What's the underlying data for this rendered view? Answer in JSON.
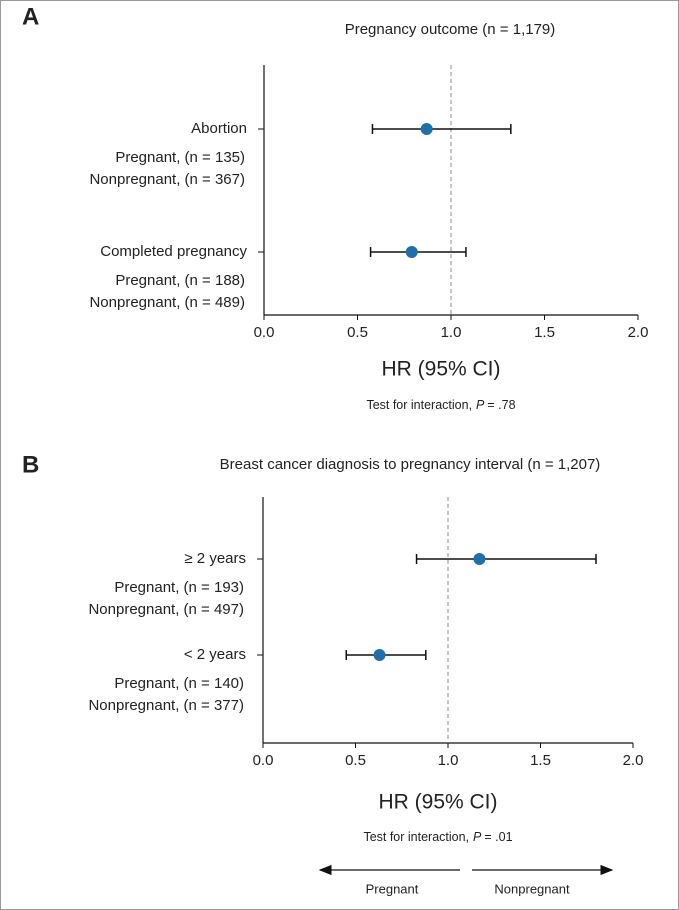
{
  "chart_data": [
    {
      "type": "forest",
      "panel": "A",
      "title": "Pregnancy outcome  (n = 1,179)",
      "categories": [
        "Abortion",
        "Completed pregnancy"
      ],
      "category_notes": [
        [
          "Pregnant, (n = 135)",
          "Nonpregnant, (n = 367)"
        ],
        [
          "Pregnant, (n = 188)",
          "Nonpregnant, (n = 489)"
        ]
      ],
      "values": [
        0.87,
        0.79
      ],
      "lower": [
        0.58,
        0.57
      ],
      "upper": [
        1.32,
        1.08
      ],
      "color": "#1f6fa8",
      "reference": 1,
      "xlim": [
        0,
        2
      ],
      "xticks": [
        {
          "value": 0,
          "label": "0.0"
        },
        0.5,
        {
          "value": 1,
          "label": "1.0"
        },
        1.5,
        {
          "value": 2,
          "label": "2.0"
        }
      ],
      "xlabel": "HR (95% CI)",
      "note": {
        "text": "Test for interaction,",
        "p": "P",
        "value": "= .78"
      }
    },
    {
      "type": "forest",
      "panel": "B",
      "title": "Breast cancer diagnosis to pregnancy interval (n = 1,207)",
      "categories": [
        "≥ 2 years",
        "< 2 years"
      ],
      "category_notes": [
        [
          "Pregnant, (n = 193)",
          "Nonpregnant, (n = 497)"
        ],
        [
          "Pregnant, (n = 140)",
          "Nonpregnant, (n = 377)"
        ]
      ],
      "values": [
        1.17,
        0.63
      ],
      "lower": [
        0.83,
        0.45
      ],
      "upper": [
        1.8,
        0.88
      ],
      "color": "#1f6fa8",
      "reference": 1,
      "xlim": [
        0,
        2
      ],
      "xticks": [
        {
          "value": 0,
          "label": "0.0"
        },
        0.5,
        {
          "value": 1,
          "label": "1.0"
        },
        1.5,
        {
          "value": 2,
          "label": "2.0"
        }
      ],
      "xlabel": "HR (95% CI)",
      "note": {
        "text": "Test for interaction,",
        "p": "P",
        "value": "= .01"
      },
      "direction_labels": [
        "Pregnant",
        "Nonpregnant"
      ]
    }
  ]
}
